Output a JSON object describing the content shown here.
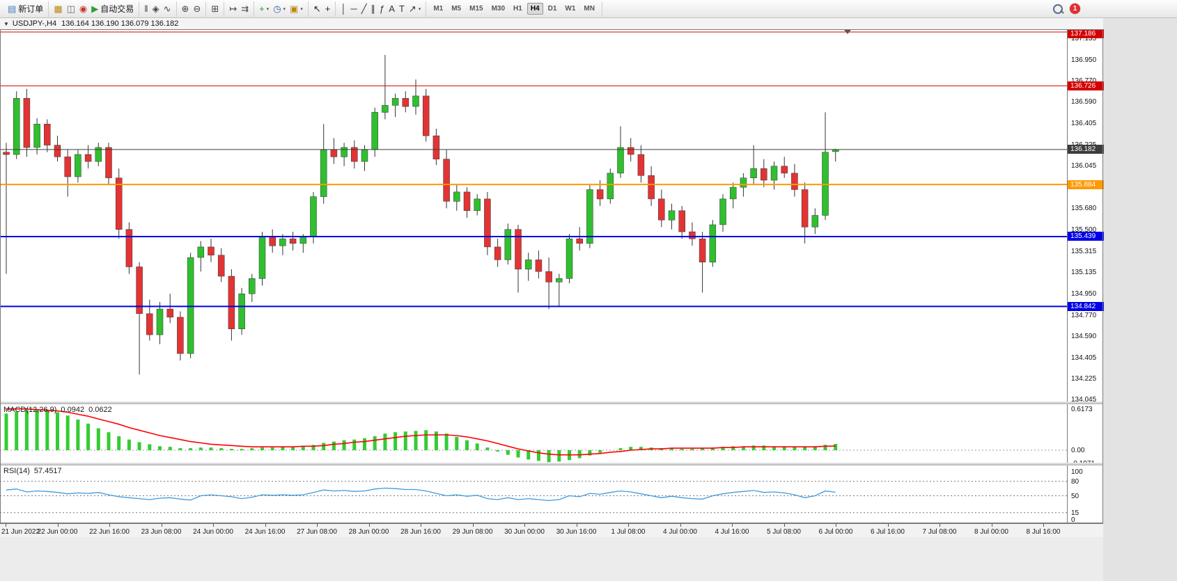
{
  "toolbar": {
    "dropdown_glyph": "▾",
    "groups": [
      [
        {
          "name": "new-order-button",
          "glyph": "▤",
          "color": "#4a7ebb",
          "label": "新订单"
        }
      ],
      [
        {
          "name": "charts-icon",
          "glyph": "▦",
          "color": "#b8860b"
        },
        {
          "name": "profiles-icon",
          "glyph": "◫",
          "color": "#6a6a6a"
        },
        {
          "name": "market-watch-icon",
          "glyph": "◉",
          "color": "#c0392b"
        },
        {
          "name": "auto-trading-button",
          "glyph": "▶",
          "color": "#2e9e2e",
          "label": "自动交易"
        }
      ],
      [
        {
          "name": "bar-chart-icon",
          "glyph": "ǁ",
          "color": "#444444"
        },
        {
          "name": "candlestick-chart-icon",
          "glyph": "◈",
          "color": "#444444"
        },
        {
          "name": "line-chart-icon",
          "glyph": "∿",
          "color": "#444444"
        }
      ],
      [
        {
          "name": "zoom-in-icon",
          "glyph": "⊕",
          "color": "#444444"
        },
        {
          "name": "zoom-out-icon",
          "glyph": "⊖",
          "color": "#444444"
        }
      ],
      [
        {
          "name": "tile-windows-icon",
          "glyph": "⊞",
          "color": "#444444"
        }
      ],
      [
        {
          "name": "auto-scroll-icon",
          "glyph": "↦",
          "color": "#444444"
        },
        {
          "name": "chart-shift-icon",
          "glyph": "⇉",
          "color": "#444444"
        }
      ],
      [
        {
          "name": "indicators-icon",
          "glyph": "+",
          "color": "#1f9e1f",
          "dropdown": true
        },
        {
          "name": "periods-icon",
          "glyph": "◷",
          "color": "#2f5fa3",
          "dropdown": true
        },
        {
          "name": "templates-icon",
          "glyph": "▣",
          "color": "#b8860b",
          "dropdown": true
        }
      ],
      [
        {
          "name": "cursor-icon",
          "glyph": "↖",
          "color": "#222222"
        },
        {
          "name": "crosshair-icon",
          "glyph": "+",
          "color": "#222222"
        }
      ],
      [
        {
          "name": "vertical-line-icon",
          "glyph": "│",
          "color": "#333333"
        },
        {
          "name": "horizontal-line-icon",
          "glyph": "─",
          "color": "#333333"
        },
        {
          "name": "trendline-icon",
          "glyph": "╱",
          "color": "#333333"
        },
        {
          "name": "channel-icon",
          "glyph": "∥",
          "color": "#333333"
        },
        {
          "name": "fibonacci-icon",
          "glyph": "ƒ",
          "color": "#333333"
        },
        {
          "name": "text-icon",
          "glyph": "A",
          "color": "#333333"
        },
        {
          "name": "label-icon",
          "glyph": "T",
          "color": "#333333"
        },
        {
          "name": "arrows-icon",
          "glyph": "↗",
          "color": "#333333",
          "dropdown": true
        }
      ]
    ],
    "timeframes": [
      "M1",
      "M5",
      "M15",
      "M30",
      "H1",
      "H4",
      "D1",
      "W1",
      "MN"
    ],
    "active_timeframe": "H4",
    "notification_badge": "1"
  },
  "titlebar": {
    "menu_glyph": "▼",
    "symbol": "USDJPY-,H4",
    "ohlc": "136.164 136.190 136.079 136.182"
  },
  "chart_data": {
    "type": "candlestick",
    "symbol": "USDJPY-",
    "period": "H4",
    "ylim": [
      134.03,
      137.21
    ],
    "y_ticks": [
      "137.135",
      "136.950",
      "136.770",
      "136.590",
      "136.405",
      "136.225",
      "136.045",
      "135.860",
      "135.680",
      "135.500",
      "135.315",
      "135.135",
      "134.950",
      "134.770",
      "134.590",
      "134.405",
      "134.225",
      "134.045"
    ],
    "x_labels": [
      "21 Jun 2022",
      "22 Jun 00:00",
      "22 Jun 16:00",
      "23 Jun 08:00",
      "24 Jun 00:00",
      "24 Jun 16:00",
      "27 Jun 08:00",
      "28 Jun 00:00",
      "28 Jun 16:00",
      "29 Jun 08:00",
      "30 Jun 00:00",
      "30 Jun 16:00",
      "1 Jul 08:00",
      "4 Jul 00:00",
      "4 Jul 16:00",
      "5 Jul 08:00",
      "6 Jul 00:00",
      "6 Jul 16:00",
      "7 Jul 08:00",
      "8 Jul 00:00",
      "8 Jul 16:00"
    ],
    "hlines": [
      {
        "price": 137.186,
        "label": "137.186",
        "color": "#d40000",
        "width": 1
      },
      {
        "price": 136.726,
        "label": "136.726",
        "color": "#d40000",
        "width": 1
      },
      {
        "price": 136.182,
        "label": "136.182",
        "color": "#3c3c3c",
        "width": 1
      },
      {
        "price": 135.884,
        "label": "135.884",
        "color": "#ff9900",
        "width": 2
      },
      {
        "price": 135.439,
        "label": "135.439",
        "color": "#0000e6",
        "width": 2
      },
      {
        "price": 134.842,
        "label": "134.842",
        "color": "#0000e6",
        "width": 2
      }
    ],
    "colors": {
      "up": "#2fbf2f",
      "down": "#e23434",
      "wick": "#333333",
      "macd_hist": "#33cc33",
      "macd_signal": "#ff0000",
      "rsi": "#3e9adf"
    },
    "candles": [
      [
        136.16,
        136.24,
        135.12,
        136.14
      ],
      [
        136.14,
        136.68,
        136.1,
        136.62
      ],
      [
        136.62,
        136.7,
        136.12,
        136.2
      ],
      [
        136.2,
        136.45,
        136.14,
        136.4
      ],
      [
        136.4,
        136.44,
        136.16,
        136.22
      ],
      [
        136.22,
        136.3,
        136.08,
        136.12
      ],
      [
        136.12,
        136.18,
        135.78,
        135.95
      ],
      [
        135.95,
        136.18,
        135.9,
        136.14
      ],
      [
        136.14,
        136.22,
        136.02,
        136.08
      ],
      [
        136.08,
        136.24,
        136.04,
        136.2
      ],
      [
        136.2,
        136.24,
        135.88,
        135.94
      ],
      [
        135.94,
        136.02,
        135.42,
        135.5
      ],
      [
        135.5,
        135.56,
        135.12,
        135.18
      ],
      [
        135.18,
        135.22,
        134.26,
        134.78
      ],
      [
        134.78,
        134.9,
        134.55,
        134.6
      ],
      [
        134.6,
        134.88,
        134.52,
        134.82
      ],
      [
        134.82,
        134.95,
        134.7,
        134.75
      ],
      [
        134.75,
        134.8,
        134.38,
        134.44
      ],
      [
        134.44,
        135.3,
        134.4,
        135.26
      ],
      [
        135.26,
        135.4,
        135.14,
        135.35
      ],
      [
        135.35,
        135.42,
        135.22,
        135.28
      ],
      [
        135.28,
        135.34,
        135.05,
        135.1
      ],
      [
        135.1,
        135.16,
        134.55,
        134.65
      ],
      [
        134.65,
        135.0,
        134.6,
        134.95
      ],
      [
        134.95,
        135.12,
        134.88,
        135.08
      ],
      [
        135.08,
        135.48,
        135.02,
        135.44
      ],
      [
        135.44,
        135.5,
        135.3,
        135.36
      ],
      [
        135.36,
        135.46,
        135.28,
        135.42
      ],
      [
        135.42,
        135.48,
        135.32,
        135.38
      ],
      [
        135.38,
        135.46,
        135.3,
        135.44
      ],
      [
        135.44,
        135.82,
        135.38,
        135.78
      ],
      [
        135.78,
        136.4,
        135.72,
        136.18
      ],
      [
        136.18,
        136.28,
        136.06,
        136.12
      ],
      [
        136.12,
        136.24,
        136.04,
        136.2
      ],
      [
        136.2,
        136.26,
        136.02,
        136.08
      ],
      [
        136.08,
        136.22,
        136.0,
        136.18
      ],
      [
        136.18,
        136.54,
        136.12,
        136.5
      ],
      [
        136.5,
        136.99,
        136.44,
        136.56
      ],
      [
        136.56,
        136.66,
        136.46,
        136.62
      ],
      [
        136.62,
        136.68,
        136.5,
        136.55
      ],
      [
        136.55,
        136.78,
        136.48,
        136.64
      ],
      [
        136.64,
        136.7,
        136.25,
        136.3
      ],
      [
        136.3,
        136.36,
        136.05,
        136.1
      ],
      [
        136.1,
        136.18,
        135.68,
        135.74
      ],
      [
        135.74,
        135.88,
        135.66,
        135.82
      ],
      [
        135.82,
        135.86,
        135.6,
        135.66
      ],
      [
        135.66,
        135.8,
        135.62,
        135.76
      ],
      [
        135.76,
        135.82,
        135.28,
        135.35
      ],
      [
        135.35,
        135.42,
        135.18,
        135.24
      ],
      [
        135.24,
        135.55,
        135.2,
        135.5
      ],
      [
        135.5,
        135.54,
        134.96,
        135.16
      ],
      [
        135.16,
        135.3,
        135.06,
        135.24
      ],
      [
        135.24,
        135.32,
        135.08,
        135.14
      ],
      [
        135.14,
        135.26,
        134.82,
        135.05
      ],
      [
        135.05,
        135.12,
        134.84,
        135.08
      ],
      [
        135.08,
        135.46,
        135.04,
        135.42
      ],
      [
        135.42,
        135.52,
        135.32,
        135.38
      ],
      [
        135.38,
        135.88,
        135.34,
        135.84
      ],
      [
        135.84,
        135.92,
        135.7,
        135.76
      ],
      [
        135.76,
        136.02,
        135.72,
        135.98
      ],
      [
        135.98,
        136.38,
        135.94,
        136.2
      ],
      [
        136.2,
        136.28,
        136.08,
        136.14
      ],
      [
        136.14,
        136.22,
        135.9,
        135.96
      ],
      [
        135.96,
        136.04,
        135.7,
        135.76
      ],
      [
        135.76,
        135.84,
        135.52,
        135.58
      ],
      [
        135.58,
        135.72,
        135.5,
        135.66
      ],
      [
        135.66,
        135.7,
        135.42,
        135.48
      ],
      [
        135.48,
        135.56,
        135.36,
        135.42
      ],
      [
        135.42,
        135.48,
        134.96,
        135.22
      ],
      [
        135.22,
        135.58,
        135.18,
        135.54
      ],
      [
        135.54,
        135.8,
        135.48,
        135.76
      ],
      [
        135.76,
        135.9,
        135.68,
        135.86
      ],
      [
        135.86,
        135.98,
        135.78,
        135.94
      ],
      [
        135.94,
        136.22,
        135.88,
        136.02
      ],
      [
        136.02,
        136.1,
        135.86,
        135.92
      ],
      [
        135.92,
        136.08,
        135.84,
        136.04
      ],
      [
        136.04,
        136.12,
        135.94,
        135.98
      ],
      [
        135.98,
        136.06,
        135.78,
        135.84
      ],
      [
        135.84,
        135.9,
        135.38,
        135.52
      ],
      [
        135.52,
        135.68,
        135.46,
        135.62
      ],
      [
        135.62,
        136.5,
        135.58,
        136.16
      ],
      [
        136.164,
        136.19,
        136.079,
        136.182
      ]
    ],
    "macd": {
      "title": "MACD(12,26,9)",
      "value_main": "0.0942",
      "value_signal": "0.0622",
      "ylim": [
        -0.1971,
        0.6173
      ],
      "scale_labels": [
        "0.6173",
        "0.00",
        "-0.1971"
      ],
      "hist": [
        0.55,
        0.58,
        0.6,
        0.61,
        0.6,
        0.57,
        0.52,
        0.46,
        0.4,
        0.33,
        0.27,
        0.21,
        0.16,
        0.12,
        0.09,
        0.06,
        0.05,
        0.03,
        0.03,
        0.04,
        0.04,
        0.03,
        0.02,
        0.02,
        0.03,
        0.04,
        0.04,
        0.05,
        0.05,
        0.06,
        0.08,
        0.11,
        0.13,
        0.15,
        0.16,
        0.18,
        0.21,
        0.25,
        0.27,
        0.28,
        0.29,
        0.3,
        0.28,
        0.25,
        0.2,
        0.15,
        0.1,
        0.04,
        -0.02,
        -0.07,
        -0.11,
        -0.14,
        -0.16,
        -0.18,
        -0.17,
        -0.15,
        -0.12,
        -0.08,
        -0.04,
        0.0,
        0.03,
        0.05,
        0.05,
        0.04,
        0.03,
        0.03,
        0.02,
        0.02,
        0.03,
        0.04,
        0.05,
        0.06,
        0.06,
        0.07,
        0.07,
        0.06,
        0.06,
        0.05,
        0.05,
        0.06,
        0.08,
        0.0942
      ],
      "signal": [
        0.62,
        0.62,
        0.62,
        0.61,
        0.6,
        0.59,
        0.57,
        0.54,
        0.51,
        0.47,
        0.43,
        0.39,
        0.34,
        0.3,
        0.26,
        0.22,
        0.19,
        0.16,
        0.13,
        0.11,
        0.09,
        0.08,
        0.07,
        0.06,
        0.05,
        0.05,
        0.05,
        0.05,
        0.05,
        0.06,
        0.06,
        0.07,
        0.09,
        0.1,
        0.12,
        0.13,
        0.15,
        0.17,
        0.19,
        0.21,
        0.22,
        0.23,
        0.23,
        0.23,
        0.22,
        0.2,
        0.17,
        0.14,
        0.1,
        0.06,
        0.02,
        -0.01,
        -0.04,
        -0.06,
        -0.07,
        -0.07,
        -0.07,
        -0.06,
        -0.05,
        -0.03,
        -0.02,
        0.0,
        0.01,
        0.02,
        0.02,
        0.03,
        0.03,
        0.03,
        0.03,
        0.03,
        0.04,
        0.04,
        0.05,
        0.05,
        0.05,
        0.05,
        0.05,
        0.05,
        0.05,
        0.05,
        0.06,
        0.0622
      ]
    },
    "rsi": {
      "title": "RSI(14)",
      "value": "57.4517",
      "ylim": [
        0,
        100
      ],
      "levels": [
        80,
        50,
        15
      ],
      "scale_labels": [
        100,
        80,
        50,
        15,
        0
      ],
      "values": [
        62,
        64,
        58,
        60,
        59,
        57,
        54,
        56,
        55,
        57,
        52,
        48,
        46,
        44,
        42,
        45,
        46,
        43,
        41,
        50,
        52,
        50,
        48,
        44,
        47,
        52,
        51,
        52,
        51,
        52,
        57,
        62,
        60,
        61,
        59,
        60,
        64,
        66,
        65,
        63,
        63,
        60,
        55,
        50,
        52,
        49,
        51,
        44,
        42,
        46,
        42,
        44,
        42,
        40,
        42,
        50,
        48,
        55,
        53,
        57,
        60,
        58,
        54,
        50,
        46,
        49,
        46,
        44,
        43,
        50,
        54,
        57,
        59,
        61,
        57,
        58,
        56,
        52,
        46,
        50,
        60,
        57.4517
      ]
    }
  }
}
